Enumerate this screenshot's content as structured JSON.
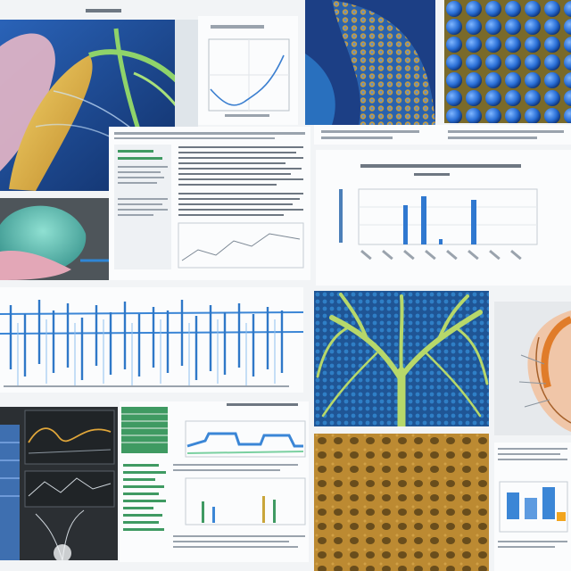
{
  "palette": {
    "deep_blue": "#1f4f9a",
    "cyan_blue": "#2f86d6",
    "lime_green": "#a8d35a",
    "ochre": "#b8862e",
    "paper": "#fbfcfd",
    "ink_gray": "#9aa3ad"
  },
  "tiles": [
    {
      "name": "anatomy-illustration",
      "subject": "organ-cross-section"
    },
    {
      "name": "line-chart-fragment",
      "subject": "curve"
    },
    {
      "name": "scaly-texture",
      "subject": "blue-gold-pattern"
    },
    {
      "name": "blue-spheres",
      "subject": "clustered-cells"
    },
    {
      "name": "dense-document-page",
      "subject": "text-columns"
    },
    {
      "name": "bar-chart-page",
      "subject": "bar-chart"
    },
    {
      "name": "teal-organ",
      "subject": "rounded-form"
    },
    {
      "name": "blue-waveform-strip",
      "subject": "vertical-traces"
    },
    {
      "name": "branching-tree-texture",
      "subject": "green-branches"
    },
    {
      "name": "orange-specimen",
      "subject": "partial-figure"
    },
    {
      "name": "dark-lab-panel",
      "subject": "plots-on-dark"
    },
    {
      "name": "green-table-page",
      "subject": "table-and-charts"
    },
    {
      "name": "porous-gold-texture",
      "subject": "sponge-like"
    },
    {
      "name": "right-edge-document",
      "subject": "mixed-page"
    }
  ]
}
